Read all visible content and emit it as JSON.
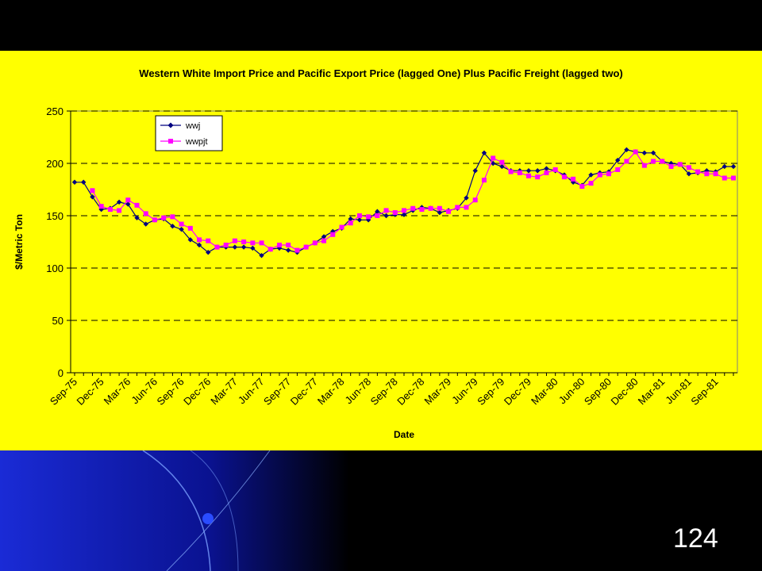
{
  "slide": {
    "number": "124"
  },
  "colors": {
    "panel": "#ffff00",
    "series1": "#000080",
    "series2": "#ff00ff",
    "background": "#000000"
  },
  "chart_data": {
    "type": "line",
    "title": "Western White Import Price and Pacific Export Price (lagged One) Plus Pacific Freight (lagged two)",
    "xlabel": "Date",
    "ylabel": "$/Metric Ton",
    "ylim": [
      0,
      250
    ],
    "yticks": [
      0,
      50,
      100,
      150,
      200,
      250
    ],
    "grid": "horizontal dashed",
    "legend": "top-left",
    "x": [
      "Sep-75",
      "Oct-75",
      "Nov-75",
      "Dec-75",
      "Jan-76",
      "Feb-76",
      "Mar-76",
      "Apr-76",
      "May-76",
      "Jun-76",
      "Jul-76",
      "Aug-76",
      "Sep-76",
      "Oct-76",
      "Nov-76",
      "Dec-76",
      "Jan-77",
      "Feb-77",
      "Mar-77",
      "Apr-77",
      "May-77",
      "Jun-77",
      "Jul-77",
      "Aug-77",
      "Sep-77",
      "Oct-77",
      "Nov-77",
      "Dec-77",
      "Jan-78",
      "Feb-78",
      "Mar-78",
      "Apr-78",
      "May-78",
      "Jun-78",
      "Jul-78",
      "Aug-78",
      "Sep-78",
      "Oct-78",
      "Nov-78",
      "Dec-78",
      "Jan-79",
      "Feb-79",
      "Mar-79",
      "Apr-79",
      "May-79",
      "Jun-79",
      "Jul-79",
      "Aug-79",
      "Sep-79",
      "Oct-79",
      "Nov-79",
      "Dec-79",
      "Jan-80",
      "Feb-80",
      "Mar-80",
      "Apr-80",
      "May-80",
      "Jun-80",
      "Jul-80",
      "Aug-80",
      "Sep-80",
      "Oct-80",
      "Nov-80",
      "Dec-80",
      "Jan-81",
      "Feb-81",
      "Mar-81",
      "Apr-81",
      "May-81",
      "Jun-81",
      "Jul-81",
      "Aug-81",
      "Sep-81",
      "Oct-81",
      "Nov-81"
    ],
    "xtick_labels": [
      "Sep-75",
      "Dec-75",
      "Mar-76",
      "Jun-76",
      "Sep-76",
      "Dec-76",
      "Mar-77",
      "Jun-77",
      "Sep-77",
      "Dec-77",
      "Mar-78",
      "Jun-78",
      "Sep-78",
      "Dec-78",
      "Mar-79",
      "Jun-79",
      "Sep-79",
      "Dec-79",
      "Mar-80",
      "Jun-80",
      "Sep-80",
      "Dec-80",
      "Mar-81",
      "Jun-81",
      "Sep-81"
    ],
    "series": [
      {
        "name": "wwj",
        "marker": "diamond",
        "color": "#000080",
        "values": [
          182,
          182,
          168,
          156,
          157,
          163,
          161,
          148,
          142,
          146,
          147,
          140,
          137,
          127,
          122,
          115,
          120,
          120,
          120,
          120,
          119,
          112,
          118,
          119,
          117,
          115,
          120,
          124,
          130,
          135,
          138,
          147,
          146,
          146,
          154,
          150,
          151,
          151,
          155,
          158,
          157,
          153,
          155,
          157,
          167,
          193,
          210,
          200,
          197,
          193,
          193,
          193,
          193,
          195,
          193,
          189,
          182,
          179,
          189,
          191,
          192,
          203,
          213,
          211,
          210,
          210,
          202,
          200,
          199,
          190,
          191,
          193,
          192,
          197,
          197
        ]
      },
      {
        "name": "wwpjt",
        "marker": "square",
        "color": "#ff00ff",
        "values": [
          null,
          null,
          174,
          159,
          156,
          155,
          165,
          160,
          152,
          146,
          148,
          149,
          142,
          138,
          127,
          126,
          120,
          122,
          126,
          125,
          124,
          124,
          118,
          122,
          122,
          117,
          120,
          124,
          126,
          132,
          139,
          143,
          150,
          149,
          150,
          155,
          153,
          155,
          157,
          156,
          157,
          157,
          154,
          158,
          158,
          165,
          184,
          205,
          201,
          192,
          191,
          188,
          187,
          191,
          194,
          187,
          185,
          178,
          181,
          189,
          190,
          194,
          202,
          211,
          198,
          202,
          202,
          197,
          199,
          196,
          192,
          190,
          190,
          186,
          186
        ]
      }
    ]
  }
}
